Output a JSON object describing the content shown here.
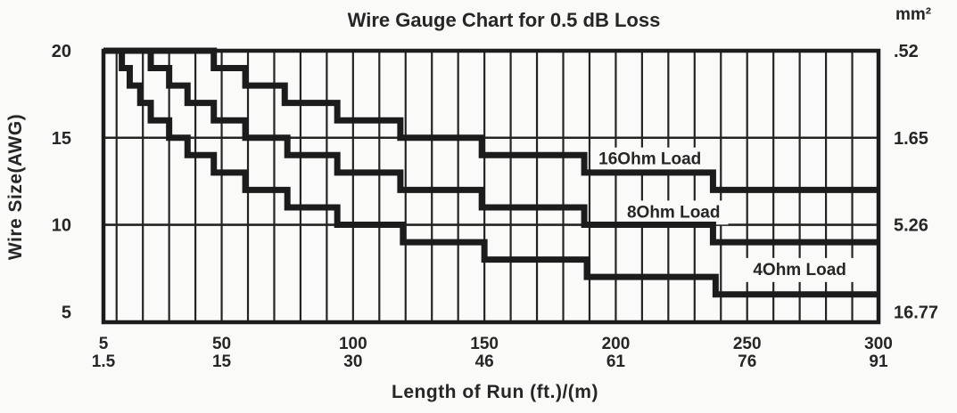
{
  "chart_data": {
    "type": "line",
    "subtype": "staircase-step-chart",
    "title": "Wire Gauge Chart for 0.5 dB Loss",
    "xlabel": "Length of Run (ft.)/(m)",
    "ylabel_left": "Wire Size(AWG)",
    "ylabel_right": "mm²",
    "x_axis": {
      "range_ft": [
        5,
        300
      ],
      "gridline_every_ft": 10,
      "ticks": [
        {
          "ft": "5",
          "m": "1.5"
        },
        {
          "ft": "50",
          "m": "15"
        },
        {
          "ft": "100",
          "m": "30"
        },
        {
          "ft": "150",
          "m": "46"
        },
        {
          "ft": "200",
          "m": "61"
        },
        {
          "ft": "250",
          "m": "76"
        },
        {
          "ft": "300",
          "m": "91"
        }
      ]
    },
    "y_axis_left": {
      "ticks": [
        "20",
        "15",
        "10",
        "5"
      ],
      "tick_awg": [
        20,
        15,
        10,
        5
      ]
    },
    "y_axis_right": {
      "unit": "mm²",
      "ticks": [
        ".52",
        "1.65",
        "5.26",
        "16.77"
      ],
      "tick_awg": [
        20,
        15,
        10,
        5
      ]
    },
    "horizontal_gridlines_awg": [
      15,
      10
    ],
    "series": [
      {
        "name": "16Ohm Load",
        "label_text": "16Ohm Load",
        "label_ft": 213,
        "label_awg": 13.8,
        "steps_awg_to_maxft": [
          [
            20,
            47
          ],
          [
            19,
            59
          ],
          [
            18,
            74
          ],
          [
            17,
            94
          ],
          [
            16,
            118
          ],
          [
            15,
            149
          ],
          [
            14,
            188
          ],
          [
            13,
            237
          ],
          [
            12,
            300
          ]
        ]
      },
      {
        "name": "8Ohm Load",
        "label_text": "8Ohm Load",
        "label_ft": 222,
        "label_awg": 10.75,
        "steps_awg_to_maxft": [
          [
            20,
            23
          ],
          [
            19,
            30
          ],
          [
            18,
            37
          ],
          [
            17,
            47
          ],
          [
            16,
            59
          ],
          [
            15,
            75
          ],
          [
            14,
            94
          ],
          [
            13,
            118
          ],
          [
            12,
            149
          ],
          [
            11,
            188
          ],
          [
            10,
            237
          ],
          [
            9,
            300
          ]
        ]
      },
      {
        "name": "4Ohm Load",
        "label_text": "4Ohm Load",
        "label_ft": 270,
        "label_awg": 7.45,
        "steps_awg_to_maxft": [
          [
            20,
            12
          ],
          [
            19,
            15
          ],
          [
            18,
            19
          ],
          [
            17,
            23
          ],
          [
            16,
            30
          ],
          [
            15,
            37
          ],
          [
            14,
            47
          ],
          [
            13,
            59
          ],
          [
            12,
            75
          ],
          [
            11,
            94
          ],
          [
            10,
            119
          ],
          [
            9,
            150
          ],
          [
            8,
            189
          ],
          [
            7,
            238
          ],
          [
            6,
            300
          ]
        ]
      }
    ],
    "colors": {
      "line": "#1c1c1c",
      "grid": "#242424",
      "border": "#1c1c1c",
      "text": "#262626",
      "page_bg": "#fafaf8",
      "label_bg": "#fafaf8"
    }
  }
}
